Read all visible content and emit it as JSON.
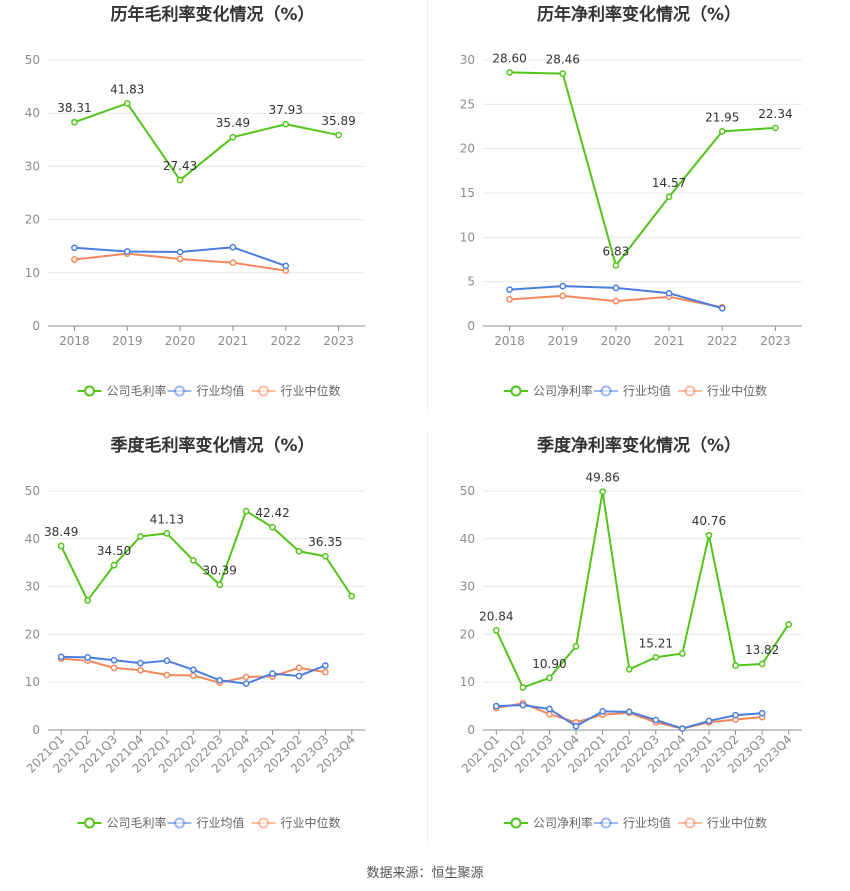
{
  "source": "数据来源：恒生聚源",
  "chart_data": [
    {
      "type": "line",
      "title": "历年毛利率变化情况（%）",
      "categories": [
        "2018",
        "2019",
        "2020",
        "2021",
        "2022",
        "2023"
      ],
      "ylim": [
        0,
        50
      ],
      "yticks": [
        0,
        10,
        20,
        30,
        40,
        50
      ],
      "grid": true,
      "legend_position": "bottom",
      "series": [
        {
          "name": "公司毛利率",
          "color": "#52c41a",
          "values": [
            38.31,
            41.83,
            27.43,
            35.49,
            37.93,
            35.89
          ],
          "labels": [
            "38.31",
            "41.83",
            "27.43",
            "35.49",
            "37.93",
            "35.89"
          ]
        },
        {
          "name": "行业均值",
          "color": "#4a7de0",
          "values": [
            14.7,
            14.0,
            13.9,
            14.8,
            11.3,
            null
          ]
        },
        {
          "name": "行业中位数",
          "color": "#f4885a",
          "values": [
            12.5,
            13.6,
            12.6,
            11.9,
            10.4,
            null
          ]
        }
      ]
    },
    {
      "type": "line",
      "title": "历年净利率变化情况（%）",
      "categories": [
        "2018",
        "2019",
        "2020",
        "2021",
        "2022",
        "2023"
      ],
      "ylim": [
        0,
        30
      ],
      "yticks": [
        0,
        5,
        10,
        15,
        20,
        25,
        30
      ],
      "grid": true,
      "legend_position": "bottom",
      "series": [
        {
          "name": "公司净利率",
          "color": "#52c41a",
          "values": [
            28.6,
            28.46,
            6.83,
            14.57,
            21.95,
            22.34
          ],
          "labels": [
            "28.60",
            "28.46",
            "6.83",
            "14.57",
            "21.95",
            "22.34"
          ]
        },
        {
          "name": "行业均值",
          "color": "#4a7de0",
          "values": [
            4.1,
            4.5,
            4.3,
            3.7,
            2.0,
            null
          ]
        },
        {
          "name": "行业中位数",
          "color": "#f4885a",
          "values": [
            3.0,
            3.4,
            2.8,
            3.3,
            2.1,
            null
          ]
        }
      ]
    },
    {
      "type": "line",
      "title": "季度毛利率变化情况（%）",
      "categories": [
        "2021Q1",
        "2021Q2",
        "2021Q3",
        "2021Q4",
        "2022Q1",
        "2022Q2",
        "2022Q3",
        "2022Q4",
        "2023Q1",
        "2023Q2",
        "2023Q3",
        "2023Q4"
      ],
      "ylim": [
        0,
        50
      ],
      "yticks": [
        0,
        10,
        20,
        30,
        40,
        50
      ],
      "grid": true,
      "legend_position": "bottom",
      "series": [
        {
          "name": "公司毛利率",
          "color": "#52c41a",
          "values": [
            38.49,
            27.1,
            34.5,
            40.5,
            41.13,
            35.5,
            30.39,
            45.8,
            42.42,
            37.4,
            36.35,
            28.0
          ],
          "labels": [
            "38.49",
            "",
            "34.50",
            "",
            "41.13",
            "",
            "30.39",
            "",
            "42.42",
            "",
            "36.35",
            ""
          ]
        },
        {
          "name": "行业均值",
          "color": "#4a7de0",
          "values": [
            15.3,
            15.2,
            14.6,
            14.0,
            14.5,
            12.6,
            10.4,
            9.7,
            11.8,
            11.3,
            13.5,
            null
          ]
        },
        {
          "name": "行业中位数",
          "color": "#f4885a",
          "values": [
            14.9,
            14.5,
            13.0,
            12.5,
            11.5,
            11.4,
            9.9,
            11.1,
            11.2,
            13.0,
            12.1,
            null
          ]
        }
      ]
    },
    {
      "type": "line",
      "title": "季度净利率变化情况（%）",
      "categories": [
        "2021Q1",
        "2021Q2",
        "2021Q3",
        "2021Q4",
        "2022Q1",
        "2022Q2",
        "2022Q3",
        "2022Q4",
        "2023Q1",
        "2023Q2",
        "2023Q3",
        "2023Q4"
      ],
      "ylim": [
        0,
        50
      ],
      "yticks": [
        0,
        10,
        20,
        30,
        40,
        50
      ],
      "grid": true,
      "legend_position": "bottom",
      "series": [
        {
          "name": "公司净利率",
          "color": "#52c41a",
          "values": [
            20.84,
            8.9,
            10.9,
            17.5,
            49.86,
            12.7,
            15.21,
            16.0,
            40.76,
            13.5,
            13.82,
            22.1
          ],
          "labels": [
            "20.84",
            "",
            "10.90",
            "",
            "49.86",
            "",
            "15.21",
            "",
            "40.76",
            "",
            "13.82",
            ""
          ]
        },
        {
          "name": "行业均值",
          "color": "#4a7de0",
          "values": [
            5.0,
            5.2,
            4.4,
            0.8,
            3.9,
            3.8,
            2.1,
            0.3,
            1.9,
            3.1,
            3.5,
            null
          ]
        },
        {
          "name": "行业中位数",
          "color": "#f4885a",
          "values": [
            4.6,
            5.6,
            3.3,
            1.6,
            3.2,
            3.6,
            1.6,
            0.3,
            1.6,
            2.2,
            2.7,
            null
          ]
        }
      ]
    }
  ]
}
